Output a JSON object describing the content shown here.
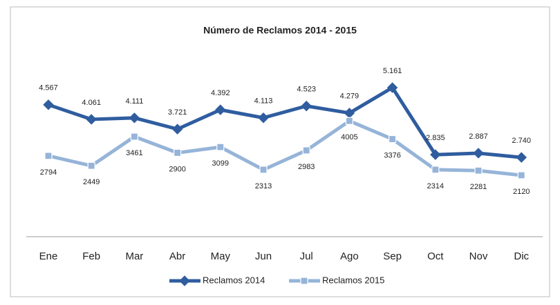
{
  "chart_data": {
    "type": "line",
    "title": "Número de Reclamos 2014 - 2015",
    "categories": [
      "Ene",
      "Feb",
      "Mar",
      "Abr",
      "May",
      "Jun",
      "Jul",
      "Ago",
      "Sep",
      "Oct",
      "Nov",
      "Dic"
    ],
    "series": [
      {
        "name": "Reclamos 2014",
        "color": "#2f5d9f",
        "marker": "diamond",
        "values": [
          4567,
          4061,
          4111,
          3721,
          4392,
          4113,
          4523,
          4279,
          5161,
          2835,
          2887,
          2740
        ],
        "value_labels": [
          "4.567",
          "4.061",
          "4.111",
          "3.721",
          "4.392",
          "4.113",
          "4.523",
          "4.279",
          "5.161",
          "2.835",
          "2.887",
          "2.740"
        ]
      },
      {
        "name": "Reclamos 2015",
        "color": "#96b4d8",
        "marker": "square",
        "values": [
          2794,
          2449,
          3461,
          2900,
          3099,
          2313,
          2983,
          4005,
          3376,
          2314,
          2281,
          2120
        ]
      }
    ],
    "legend": "bottom"
  }
}
